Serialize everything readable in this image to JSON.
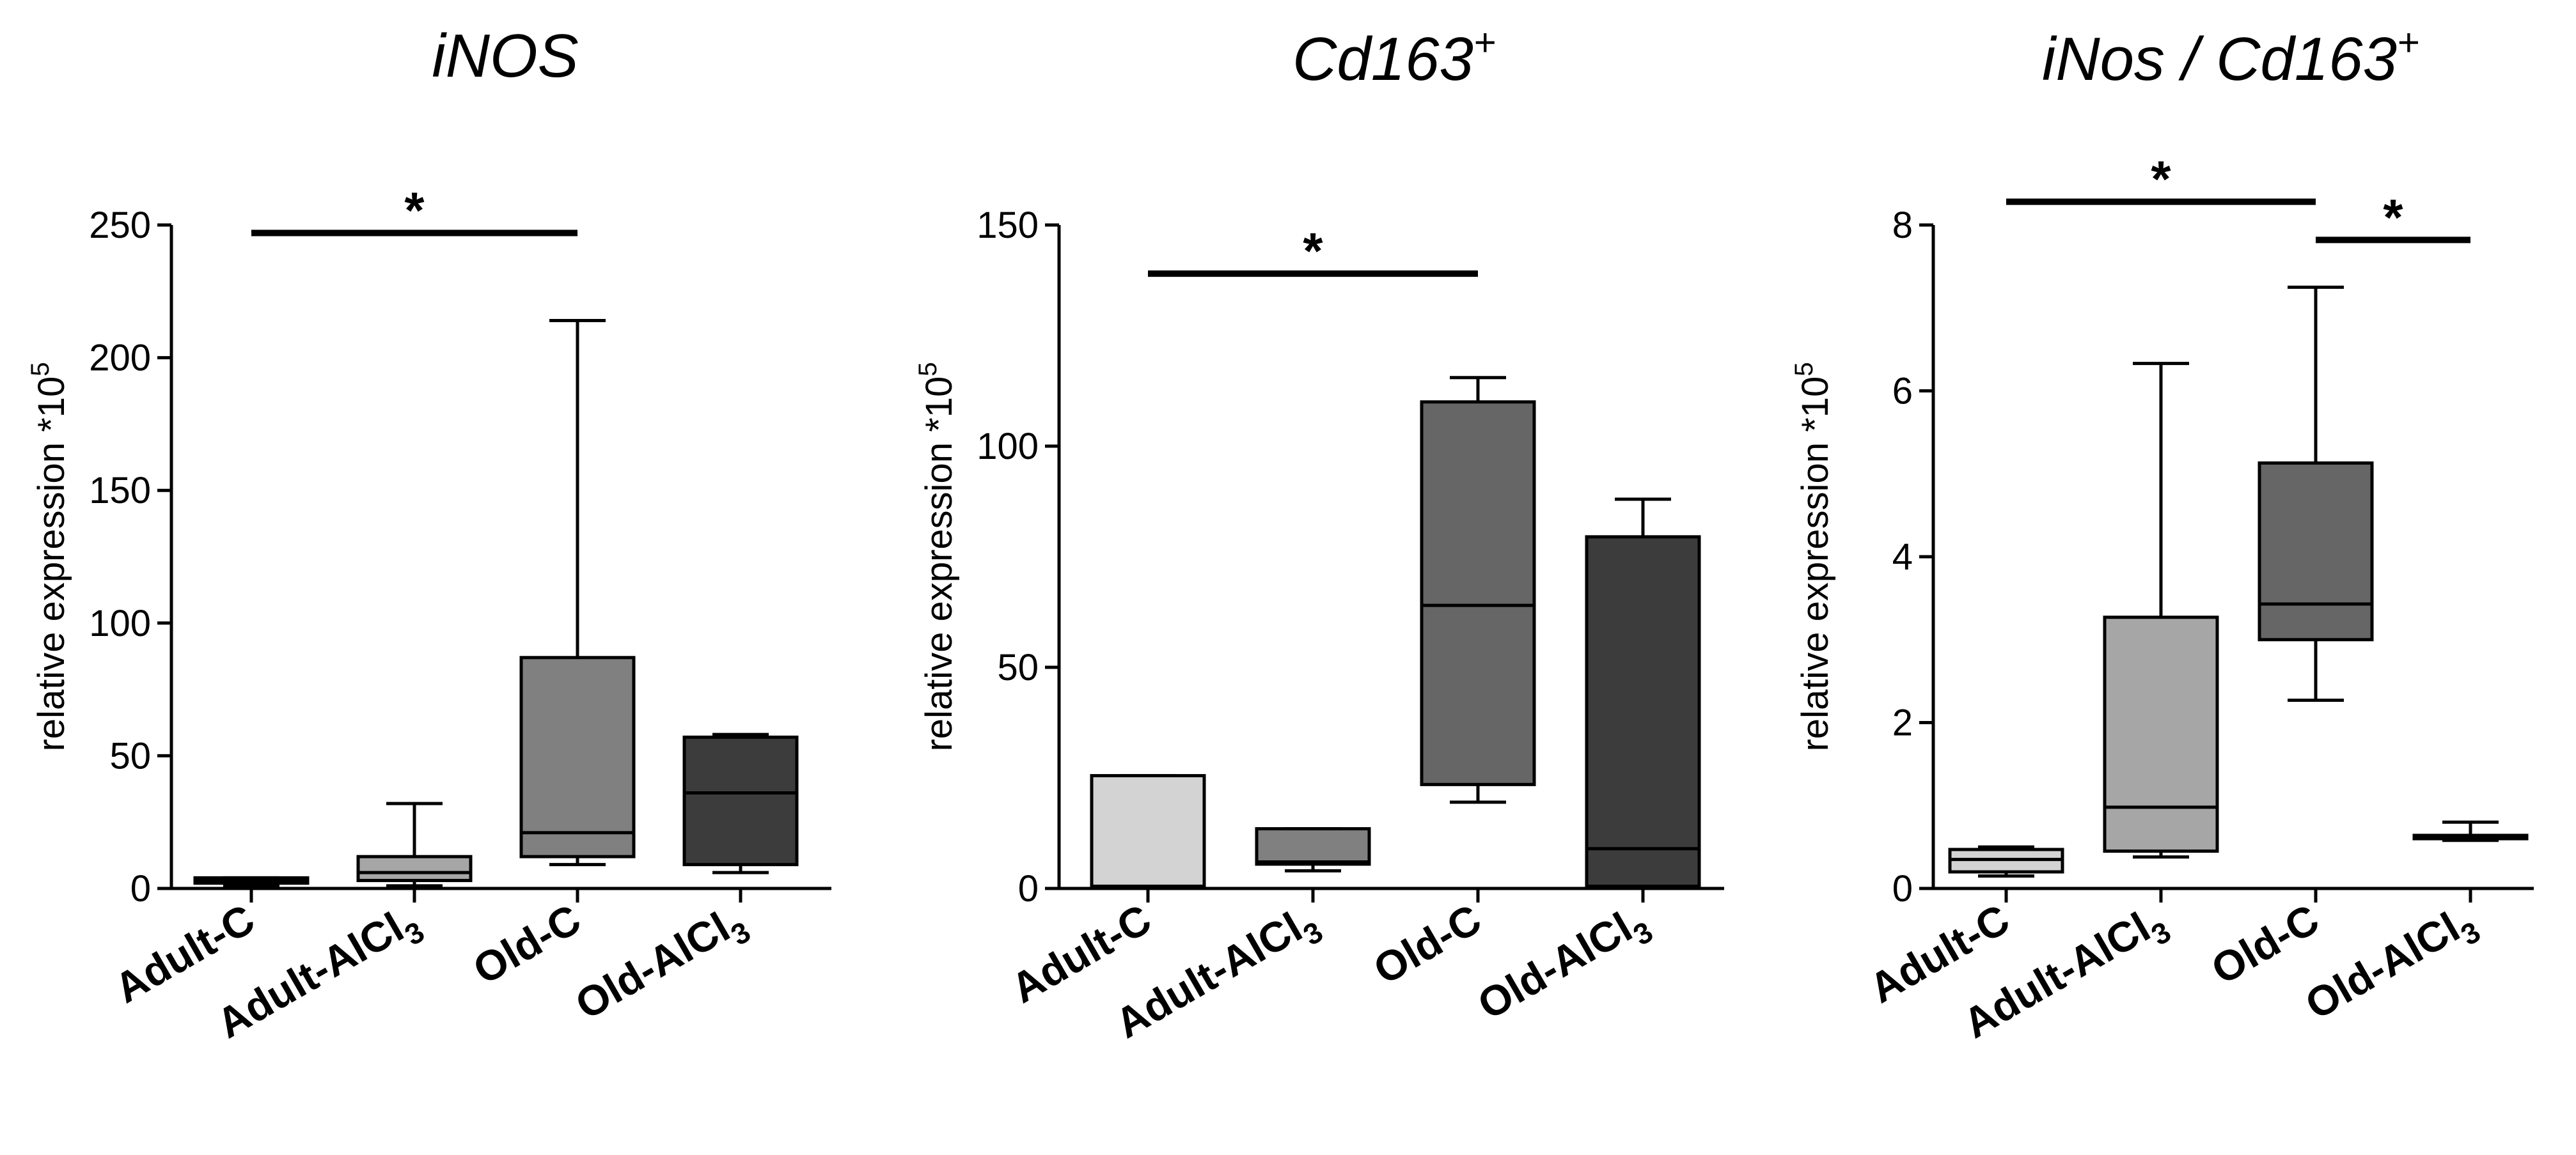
{
  "chart_data": [
    {
      "type": "box",
      "title_main": "iNOS",
      "title_sup": "",
      "title_tail": "",
      "ylabel": "relative expression *10",
      "ylabel_sup": "5",
      "ylim": [
        0,
        250
      ],
      "yticks": [
        0,
        50,
        100,
        150,
        200,
        250
      ],
      "grid": false,
      "categories": [
        {
          "main": "Adult-C",
          "sub": "",
          "tail": ""
        },
        {
          "main": "Adult-AlCl",
          "sub": "3",
          "tail": ""
        },
        {
          "main": "Old-C",
          "sub": "",
          "tail": ""
        },
        {
          "main": "Old-AlCl",
          "sub": "3",
          "tail": ""
        }
      ],
      "boxes": [
        {
          "min": 1,
          "q1": 2,
          "median": 3,
          "q3": 4,
          "max": 4,
          "color": "#d3d3d3"
        },
        {
          "min": 1,
          "q1": 3,
          "median": 6,
          "q3": 12,
          "max": 32,
          "color": "#a6a6a6"
        },
        {
          "min": 9,
          "q1": 12,
          "median": 21,
          "q3": 87,
          "max": 214,
          "color": "#808080"
        },
        {
          "min": 6,
          "q1": 9,
          "median": 36,
          "q3": 57,
          "max": 58,
          "color": "#3c3c3c"
        }
      ],
      "significance": [
        {
          "from": 0,
          "to": 2,
          "label": "*",
          "y": 247
        }
      ]
    },
    {
      "type": "box",
      "title_main": "Cd163",
      "title_sup": "+",
      "title_tail": "",
      "ylabel": "relative expression *10",
      "ylabel_sup": "5",
      "ylim": [
        0,
        150
      ],
      "yticks": [
        0,
        50,
        100,
        150
      ],
      "grid": false,
      "categories": [
        {
          "main": "Adult-C",
          "sub": "",
          "tail": ""
        },
        {
          "main": "Adult-AlCl",
          "sub": "3",
          "tail": ""
        },
        {
          "main": "Old-C",
          "sub": "",
          "tail": ""
        },
        {
          "main": "Old-AlCl",
          "sub": "3",
          "tail": ""
        }
      ],
      "boxes": [
        {
          "min": 0.3,
          "q1": 0.5,
          "median": 0.5,
          "q3": 25.5,
          "max": 25.5,
          "color": "#d3d3d3"
        },
        {
          "min": 4,
          "q1": 5.5,
          "median": 6,
          "q3": 13.5,
          "max": 13.5,
          "color": "#808080"
        },
        {
          "min": 19.5,
          "q1": 23.5,
          "median": 64,
          "q3": 110,
          "max": 115.5,
          "color": "#666666"
        },
        {
          "min": 0.5,
          "q1": 0.5,
          "median": 9,
          "q3": 79.5,
          "max": 88,
          "color": "#3c3c3c"
        }
      ],
      "significance": [
        {
          "from": 0,
          "to": 2,
          "label": "*",
          "y": 139
        }
      ]
    },
    {
      "type": "box",
      "title_main": "iNos / Cd163",
      "title_sup": "+",
      "title_tail": "",
      "ylabel": "relative expression *10",
      "ylabel_sup": "5",
      "ylim": [
        0,
        8
      ],
      "yticks": [
        0,
        2,
        4,
        6,
        8
      ],
      "grid": false,
      "categories": [
        {
          "main": "Adult-C",
          "sub": "",
          "tail": ""
        },
        {
          "main": "Adult-AlCl",
          "sub": "3",
          "tail": ""
        },
        {
          "main": "Old-C",
          "sub": "",
          "tail": ""
        },
        {
          "main": "Old-AlCl",
          "sub": "3",
          "tail": ""
        }
      ],
      "boxes": [
        {
          "min": 0.15,
          "q1": 0.2,
          "median": 0.35,
          "q3": 0.47,
          "max": 0.5,
          "color": "#d3d3d3"
        },
        {
          "min": 0.38,
          "q1": 0.45,
          "median": 0.98,
          "q3": 3.27,
          "max": 6.33,
          "color": "#a6a6a6"
        },
        {
          "min": 2.27,
          "q1": 3.0,
          "median": 3.43,
          "q3": 5.13,
          "max": 7.25,
          "color": "#666666"
        },
        {
          "min": 0.58,
          "q1": 0.6,
          "median": 0.62,
          "q3": 0.64,
          "max": 0.8,
          "color": "#3c3c3c"
        }
      ],
      "significance": [
        {
          "from": 0,
          "to": 2,
          "label": "*",
          "y": 8.28
        },
        {
          "from": 2,
          "to": 3,
          "label": "*",
          "y": 7.82
        }
      ]
    }
  ]
}
